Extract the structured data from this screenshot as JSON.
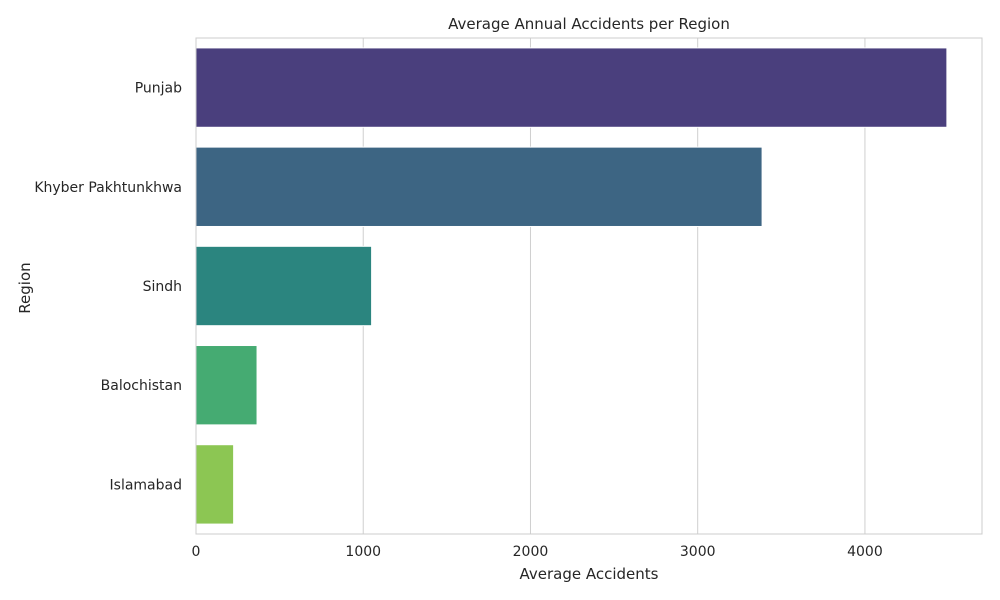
{
  "chart_data": {
    "type": "bar",
    "orientation": "horizontal",
    "title": "Average Annual Accidents per Region",
    "xlabel": "Average Accidents",
    "ylabel": "Region",
    "categories": [
      "Punjab",
      "Khyber Pakhtunkhwa",
      "Sindh",
      "Balochistan",
      "Islamabad"
    ],
    "values": [
      4490,
      3385,
      1050,
      365,
      225
    ],
    "xlim": [
      0,
      4700
    ],
    "xticks": [
      0,
      1000,
      2000,
      3000,
      4000
    ],
    "grid": true,
    "colors": [
      "#4a3f7d",
      "#3d6583",
      "#2b857f",
      "#45ab72",
      "#8cc653"
    ],
    "palette": "viridis"
  }
}
